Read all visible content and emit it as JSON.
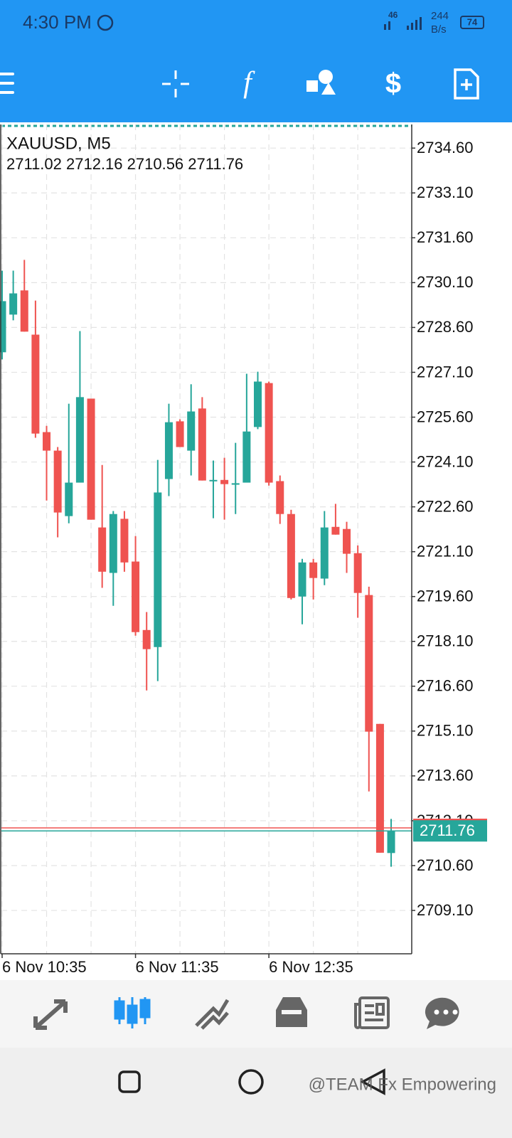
{
  "status_bar": {
    "time": "4:30 PM",
    "network": "46",
    "speed": "244",
    "speed_unit": "B/s",
    "battery": "74"
  },
  "chart_data": {
    "type": "candlestick",
    "title": "XAUUSD, M5",
    "subtitle": "2711.02 2712.16 2710.56 2711.76",
    "categories": [
      "6 Nov 10:35",
      null,
      null,
      null,
      null,
      null,
      null,
      null,
      null,
      null,
      null,
      null,
      "6 Nov 11:35",
      null,
      null,
      null,
      null,
      null,
      null,
      null,
      null,
      null,
      null,
      null,
      "6 Nov 12:35",
      null,
      null,
      null,
      null,
      null,
      null,
      null,
      null,
      null,
      null,
      null
    ],
    "open": [
      2727.77,
      2729.03,
      2729.84,
      2728.36,
      2725.1,
      2724.48,
      2722.29,
      2723.41,
      2726.22,
      2721.91,
      2720.39,
      2722.2,
      2720.77,
      2718.48,
      2717.91,
      2723.53,
      2725.46,
      2724.48,
      2725.89,
      2723.46,
      2723.5,
      2723.34,
      2723.41,
      2725.27,
      2726.74,
      2723.46,
      2722.36,
      2719.6,
      2720.74,
      2720.2,
      2721.93,
      2721.86,
      2721.05,
      2719.65,
      2715.34,
      2711.02
    ],
    "high": [
      2730.5,
      2730.5,
      2730.86,
      2729.5,
      2725.31,
      2724.6,
      2726.05,
      2728.48,
      2726.22,
      2724.0,
      2722.46,
      2722.46,
      2721.62,
      2719.08,
      2724.17,
      2726.05,
      2725.53,
      2726.7,
      2726.27,
      2724.15,
      2724.24,
      2724.74,
      2727.05,
      2727.12,
      2726.79,
      2723.65,
      2722.5,
      2720.86,
      2720.86,
      2722.46,
      2722.7,
      2722.1,
      2721.31,
      2719.93,
      2715.34,
      2712.16
    ],
    "low": [
      2727.53,
      2728.84,
      2728.46,
      2724.91,
      2722.81,
      2721.58,
      2722.05,
      2723.41,
      2722.17,
      2719.89,
      2719.29,
      2720.43,
      2718.29,
      2716.46,
      2716.77,
      2722.96,
      2724.6,
      2723.65,
      2723.48,
      2722.22,
      2722.17,
      2722.36,
      2723.41,
      2725.2,
      2723.31,
      2722.03,
      2719.5,
      2718.67,
      2719.5,
      2719.98,
      2721.67,
      2720.39,
      2718.89,
      2713.08,
      2711.03,
      2710.56
    ],
    "close": [
      2729.48,
      2729.74,
      2728.46,
      2725.05,
      2724.48,
      2722.41,
      2723.41,
      2726.27,
      2722.17,
      2720.43,
      2722.36,
      2720.74,
      2718.41,
      2717.84,
      2723.08,
      2725.43,
      2724.6,
      2725.79,
      2723.48,
      2723.5,
      2723.36,
      2723.39,
      2725.12,
      2726.79,
      2723.41,
      2722.36,
      2719.55,
      2720.74,
      2720.22,
      2721.91,
      2721.67,
      2721.03,
      2719.72,
      2715.08,
      2711.03,
      2711.76
    ],
    "up_color": "#26a69a",
    "down_color": "#ef5350",
    "ylim": [
      2707.65,
      2735.39
    ],
    "yticks": [
      {
        "value": 2734.6,
        "label": "2734.60"
      },
      {
        "value": 2733.1,
        "label": "2733.10"
      },
      {
        "value": 2731.6,
        "label": "2731.60"
      },
      {
        "value": 2730.1,
        "label": "2730.10"
      },
      {
        "value": 2728.6,
        "label": "2728.60"
      },
      {
        "value": 2727.1,
        "label": "2727.10"
      },
      {
        "value": 2725.6,
        "label": "2725.60"
      },
      {
        "value": 2724.1,
        "label": "2724.10"
      },
      {
        "value": 2722.6,
        "label": "2722.60"
      },
      {
        "value": 2721.1,
        "label": "2721.10"
      },
      {
        "value": 2719.6,
        "label": "2719.60"
      },
      {
        "value": 2718.1,
        "label": "2718.10"
      },
      {
        "value": 2716.6,
        "label": "2716.60"
      },
      {
        "value": 2715.1,
        "label": "2715.10"
      },
      {
        "value": 2713.6,
        "label": "2713.60"
      },
      {
        "value": 2712.1,
        "label": "2712.10"
      },
      {
        "value": 2710.6,
        "label": "2710.60"
      },
      {
        "value": 2709.1,
        "label": "2709.10"
      }
    ],
    "grid": true,
    "current_price": 2711.76,
    "ask_price": 2711.86
  },
  "watermark": "@TEAM Fx Empowering"
}
